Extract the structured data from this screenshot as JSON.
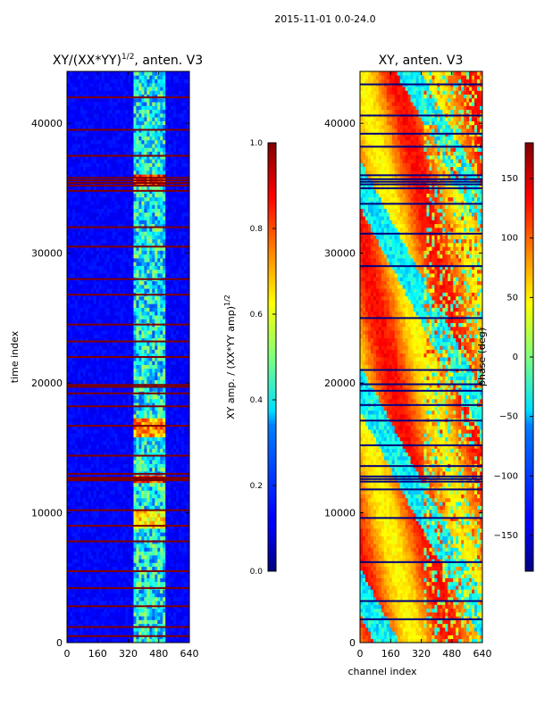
{
  "figure": {
    "suptitle": "2015-11-01 0.0-24.0",
    "xlabel": "channel index",
    "ylabel": "time index"
  },
  "chart_data": [
    {
      "type": "heatmap",
      "title_main": "XY/(XX*YY)",
      "title_exp": "1/2",
      "title_tail": ", anten. V3",
      "xlim": [
        0,
        640
      ],
      "ylim": [
        0,
        44000
      ],
      "xticks": [
        0,
        160,
        320,
        480,
        640
      ],
      "xtick_labels": [
        "0",
        "160",
        "320",
        "480",
        "640"
      ],
      "yticks": [
        0,
        10000,
        20000,
        30000,
        40000
      ],
      "ytick_labels": [
        "0",
        "10000",
        "20000",
        "30000",
        "40000"
      ],
      "colorbar": {
        "label_main": "XY amp. / (XX*YY amp)",
        "label_exp": "1/2",
        "range": [
          0.0,
          1.0
        ],
        "ticks": [
          0.0,
          0.2,
          0.4,
          0.6,
          0.8,
          1.0
        ],
        "tick_labels": [
          "0.0",
          "0.2",
          "0.4",
          "0.6",
          "0.8",
          "1.0"
        ],
        "colormap": "jet"
      },
      "flagged_rows": [
        500,
        1200,
        2800,
        4200,
        5500,
        7800,
        9000,
        10200,
        12500,
        12600,
        12700,
        13000,
        14400,
        16700,
        18200,
        19200,
        19700,
        19850,
        22000,
        23200,
        24500,
        26800,
        28000,
        30500,
        32000,
        34800,
        35200,
        35400,
        35600,
        35800,
        37500,
        39500,
        42000
      ],
      "high_value_rows": [
        {
          "t0": 12300,
          "t1": 13000,
          "level": 0.95
        },
        {
          "t0": 15800,
          "t1": 17200,
          "level": 0.85
        },
        {
          "t0": 8800,
          "t1": 10200,
          "level": 0.75
        },
        {
          "t0": 35100,
          "t1": 36100,
          "level": 0.98
        }
      ],
      "active_channel_range": [
        350,
        520
      ]
    },
    {
      "type": "heatmap",
      "title_main": "XY, anten. V3",
      "xlim": [
        0,
        640
      ],
      "ylim": [
        0,
        44000
      ],
      "xticks": [
        0,
        160,
        320,
        480,
        640
      ],
      "xtick_labels": [
        "0",
        "160",
        "320",
        "480",
        "640"
      ],
      "yticks": [
        0,
        10000,
        20000,
        30000,
        40000
      ],
      "ytick_labels": [
        "0",
        "10000",
        "20000",
        "30000",
        "40000"
      ],
      "colorbar": {
        "label_main": "phase (deg)",
        "range": [
          -180,
          180
        ],
        "ticks": [
          -150,
          -100,
          -50,
          0,
          50,
          100,
          150
        ],
        "tick_labels": [
          "−150",
          "−100",
          "−50",
          "0",
          "50",
          "100",
          "150"
        ],
        "colormap": "jet"
      },
      "flagged_rows": [
        1800,
        3200,
        6200,
        9600,
        11800,
        12400,
        12600,
        12800,
        13600,
        15200,
        17100,
        18300,
        19400,
        19900,
        21000,
        25000,
        29000,
        31500,
        33800,
        35000,
        35300,
        35500,
        35700,
        36000,
        38200,
        39200,
        40600,
        43000
      ]
    }
  ]
}
